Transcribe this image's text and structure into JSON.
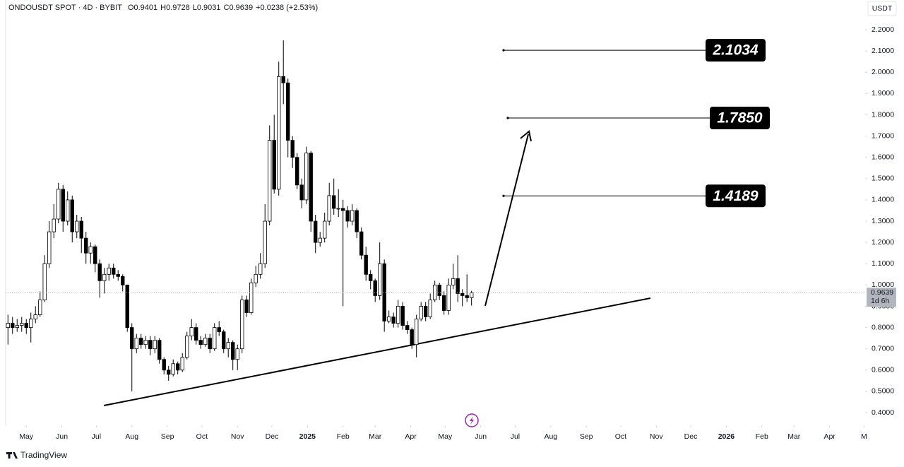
{
  "chart_data": {
    "type": "candlestick",
    "title": "ONDOUSDT SPOT · 4D · BYBIT",
    "legend_items": [
      "O0.9401",
      "H0.9728",
      "L0.9031",
      "C0.9639",
      "+0.0238 (+2.53%)"
    ],
    "currency": "USDT",
    "countdown": "1d 6h",
    "brand": "TradingView",
    "up_color": "#ffffff",
    "down_color": "#000000",
    "x": [
      "2024-04-15",
      "2024-04-19",
      "2024-04-23",
      "2024-04-27",
      "2024-05-01",
      "2024-05-05",
      "2024-05-09",
      "2024-05-13",
      "2024-05-17",
      "2024-05-21",
      "2024-05-25",
      "2024-05-29",
      "2024-06-02",
      "2024-06-06",
      "2024-06-10",
      "2024-06-14",
      "2024-06-18",
      "2024-06-22",
      "2024-06-26",
      "2024-06-30",
      "2024-07-04",
      "2024-07-08",
      "2024-07-12",
      "2024-07-16",
      "2024-07-20",
      "2024-07-24",
      "2024-07-28",
      "2024-08-01",
      "2024-08-05",
      "2024-08-09",
      "2024-08-13",
      "2024-08-17",
      "2024-08-21",
      "2024-08-25",
      "2024-08-29",
      "2024-09-02",
      "2024-09-06",
      "2024-09-10",
      "2024-09-14",
      "2024-09-18",
      "2024-09-22",
      "2024-09-26",
      "2024-09-30",
      "2024-10-04",
      "2024-10-08",
      "2024-10-12",
      "2024-10-16",
      "2024-10-20",
      "2024-10-24",
      "2024-10-28",
      "2024-11-01",
      "2024-11-05",
      "2024-11-09",
      "2024-11-13",
      "2024-11-17",
      "2024-11-21",
      "2024-11-25",
      "2024-11-29",
      "2024-12-03",
      "2024-12-07",
      "2024-12-11",
      "2024-12-15",
      "2024-12-19",
      "2024-12-23",
      "2024-12-27",
      "2024-12-31",
      "2025-01-04",
      "2025-01-08",
      "2025-01-12",
      "2025-01-16",
      "2025-01-20",
      "2025-01-24",
      "2025-01-28",
      "2025-02-01",
      "2025-02-05",
      "2025-02-09",
      "2025-02-13",
      "2025-02-17",
      "2025-02-21",
      "2025-02-25",
      "2025-03-01",
      "2025-03-05",
      "2025-03-09",
      "2025-03-13",
      "2025-03-17",
      "2025-03-21",
      "2025-03-25",
      "2025-03-29",
      "2025-04-02",
      "2025-04-06",
      "2025-04-10",
      "2025-04-14",
      "2025-04-18",
      "2025-04-22",
      "2025-04-26",
      "2025-04-30",
      "2025-05-04",
      "2025-05-08",
      "2025-05-12",
      "2025-05-16",
      "2025-05-20",
      "2025-05-24"
    ],
    "open": [
      0.8,
      0.82,
      0.8,
      0.81,
      0.82,
      0.8,
      0.84,
      0.86,
      0.93,
      1.1,
      1.25,
      1.31,
      1.45,
      1.3,
      1.4,
      1.25,
      1.3,
      1.22,
      1.15,
      1.18,
      1.1,
      1.02,
      1.05,
      1.08,
      1.05,
      1.04,
      1.0,
      0.8,
      0.7,
      0.75,
      0.72,
      0.74,
      0.7,
      0.74,
      0.65,
      0.6,
      0.58,
      0.63,
      0.6,
      0.66,
      0.76,
      0.8,
      0.74,
      0.72,
      0.75,
      0.7,
      0.8,
      0.78,
      0.7,
      0.73,
      0.65,
      0.7,
      0.93,
      0.87,
      1.01,
      1.05,
      1.1,
      1.3,
      1.68,
      1.45,
      1.98,
      1.95,
      1.68,
      1.6,
      1.47,
      1.4,
      1.62,
      1.3,
      1.2,
      1.22,
      1.3,
      1.42,
      1.36,
      1.36,
      1.35,
      1.3,
      1.35,
      1.25,
      1.14,
      1.05,
      1.02,
      0.95,
      1.1,
      0.83,
      0.85,
      0.82,
      0.9,
      0.81,
      0.79,
      0.72,
      0.84,
      0.9,
      0.85,
      0.93,
      1.0,
      0.95,
      0.88,
      1.0,
      1.03,
      0.96,
      0.95,
      0.9401
    ],
    "high": [
      0.86,
      0.85,
      0.84,
      0.85,
      0.84,
      0.87,
      0.9,
      0.97,
      1.14,
      1.3,
      1.38,
      1.48,
      1.47,
      1.44,
      1.42,
      1.33,
      1.32,
      1.25,
      1.2,
      1.19,
      1.12,
      1.08,
      1.1,
      1.1,
      1.07,
      1.05,
      1.0,
      0.82,
      0.77,
      0.77,
      0.76,
      0.76,
      0.76,
      0.75,
      0.66,
      0.62,
      0.65,
      0.64,
      0.68,
      0.78,
      0.84,
      0.82,
      0.76,
      0.77,
      0.77,
      0.82,
      0.83,
      0.79,
      0.75,
      0.74,
      0.72,
      0.95,
      0.95,
      1.03,
      1.09,
      1.15,
      1.38,
      1.75,
      1.8,
      2.05,
      2.15,
      1.97,
      1.7,
      1.62,
      1.5,
      1.65,
      1.63,
      1.33,
      1.25,
      1.34,
      1.48,
      1.5,
      1.45,
      1.4,
      1.37,
      1.38,
      1.36,
      1.27,
      1.18,
      1.07,
      1.03,
      1.2,
      1.12,
      0.88,
      0.87,
      0.93,
      0.92,
      0.83,
      0.8,
      0.86,
      0.92,
      0.92,
      0.96,
      1.02,
      1.01,
      0.97,
      1.03,
      1.1,
      1.14,
      0.98,
      1.05,
      0.9728
    ],
    "low": [
      0.72,
      0.77,
      0.78,
      0.78,
      0.77,
      0.73,
      0.82,
      0.85,
      0.92,
      1.08,
      1.22,
      1.29,
      1.25,
      1.28,
      1.2,
      1.22,
      1.15,
      1.1,
      1.1,
      1.06,
      0.94,
      0.96,
      1.02,
      1.03,
      1.02,
      0.97,
      0.78,
      0.5,
      0.68,
      0.7,
      0.7,
      0.67,
      0.68,
      0.63,
      0.58,
      0.55,
      0.57,
      0.58,
      0.59,
      0.65,
      0.74,
      0.72,
      0.7,
      0.71,
      0.68,
      0.69,
      0.76,
      0.68,
      0.66,
      0.6,
      0.6,
      0.68,
      0.85,
      0.86,
      0.99,
      1.03,
      1.08,
      1.28,
      1.43,
      1.42,
      1.85,
      1.6,
      1.55,
      1.45,
      1.36,
      1.38,
      1.25,
      1.15,
      1.18,
      1.2,
      1.28,
      1.33,
      1.32,
      0.9,
      1.27,
      1.28,
      1.22,
      1.12,
      1.02,
      0.98,
      0.92,
      0.93,
      0.78,
      0.82,
      0.8,
      0.8,
      0.79,
      0.77,
      0.7,
      0.66,
      0.83,
      0.83,
      0.84,
      0.92,
      0.93,
      0.86,
      0.86,
      0.98,
      0.92,
      0.9,
      0.92,
      0.9031
    ],
    "close": [
      0.82,
      0.8,
      0.81,
      0.82,
      0.8,
      0.84,
      0.86,
      0.93,
      1.1,
      1.25,
      1.31,
      1.45,
      1.3,
      1.4,
      1.25,
      1.3,
      1.22,
      1.15,
      1.18,
      1.1,
      1.02,
      1.05,
      1.08,
      1.05,
      1.04,
      1.0,
      0.8,
      0.7,
      0.75,
      0.72,
      0.74,
      0.7,
      0.74,
      0.65,
      0.6,
      0.58,
      0.63,
      0.6,
      0.66,
      0.76,
      0.8,
      0.74,
      0.72,
      0.75,
      0.7,
      0.8,
      0.78,
      0.7,
      0.73,
      0.65,
      0.7,
      0.93,
      0.87,
      1.01,
      1.05,
      1.1,
      1.3,
      1.68,
      1.45,
      1.98,
      1.95,
      1.68,
      1.6,
      1.47,
      1.4,
      1.62,
      1.3,
      1.2,
      1.22,
      1.3,
      1.42,
      1.36,
      1.36,
      1.35,
      1.3,
      1.35,
      1.25,
      1.14,
      1.05,
      1.02,
      0.95,
      1.1,
      0.83,
      0.85,
      0.82,
      0.9,
      0.81,
      0.79,
      0.72,
      0.84,
      0.9,
      0.85,
      0.93,
      1.0,
      0.95,
      0.88,
      1.0,
      1.03,
      0.96,
      0.95,
      0.9401,
      0.9639
    ],
    "xlim": [
      "2024-04-13",
      "2026-05-02"
    ],
    "xticks": [
      {
        "value": "2024-05-01",
        "label": "May"
      },
      {
        "value": "2024-06-01",
        "label": "Jun"
      },
      {
        "value": "2024-07-01",
        "label": "Jul"
      },
      {
        "value": "2024-08-01",
        "label": "Aug"
      },
      {
        "value": "2024-09-01",
        "label": "Sep"
      },
      {
        "value": "2024-10-01",
        "label": "Oct"
      },
      {
        "value": "2024-11-01",
        "label": "Nov"
      },
      {
        "value": "2024-12-01",
        "label": "Dec"
      },
      {
        "value": "2025-01-01",
        "label": "2025"
      },
      {
        "value": "2025-02-01",
        "label": "Feb"
      },
      {
        "value": "2025-03-01",
        "label": "Mar"
      },
      {
        "value": "2025-04-01",
        "label": "Apr"
      },
      {
        "value": "2025-05-01",
        "label": "May"
      },
      {
        "value": "2025-06-01",
        "label": "Jun"
      },
      {
        "value": "2025-07-01",
        "label": "Jul"
      },
      {
        "value": "2025-08-01",
        "label": "Aug"
      },
      {
        "value": "2025-09-01",
        "label": "Sep"
      },
      {
        "value": "2025-10-01",
        "label": "Oct"
      },
      {
        "value": "2025-11-01",
        "label": "Nov"
      },
      {
        "value": "2025-12-01",
        "label": "Dec"
      },
      {
        "value": "2026-01-01",
        "label": "2026"
      },
      {
        "value": "2026-02-01",
        "label": "Feb"
      },
      {
        "value": "2026-03-01",
        "label": "Mar"
      },
      {
        "value": "2026-04-01",
        "label": "Apr"
      },
      {
        "value": "2026-05-01",
        "label": "M"
      }
    ],
    "ylim": [
      0.347,
      2.313
    ],
    "yticks": [
      {
        "value": 0.4,
        "label": "0.4000"
      },
      {
        "value": 0.5,
        "label": "0.5000"
      },
      {
        "value": 0.6,
        "label": "0.6000"
      },
      {
        "value": 0.7,
        "label": "0.7000"
      },
      {
        "value": 0.8,
        "label": "0.8000"
      },
      {
        "value": 0.9,
        "label": "0.9000"
      },
      {
        "value": 1.0,
        "label": "1.0000"
      },
      {
        "value": 1.1,
        "label": "1.1000"
      },
      {
        "value": 1.2,
        "label": "1.2000"
      },
      {
        "value": 1.3,
        "label": "1.3000"
      },
      {
        "value": 1.4,
        "label": "1.4000"
      },
      {
        "value": 1.5,
        "label": "1.5000"
      },
      {
        "value": 1.6,
        "label": "1.6000"
      },
      {
        "value": 1.7,
        "label": "1.7000"
      },
      {
        "value": 1.8,
        "label": "1.8000"
      },
      {
        "value": 1.9,
        "label": "1.9000"
      },
      {
        "value": 2.0,
        "label": "2.0000"
      },
      {
        "value": 2.1,
        "label": "2.1000"
      },
      {
        "value": 2.2,
        "label": "2.2000"
      }
    ],
    "targets": [
      {
        "value": 2.1034,
        "label": "2.1034"
      },
      {
        "value": 1.785,
        "label": "1.7850"
      },
      {
        "value": 1.4189,
        "label": "1.4189"
      }
    ]
  }
}
